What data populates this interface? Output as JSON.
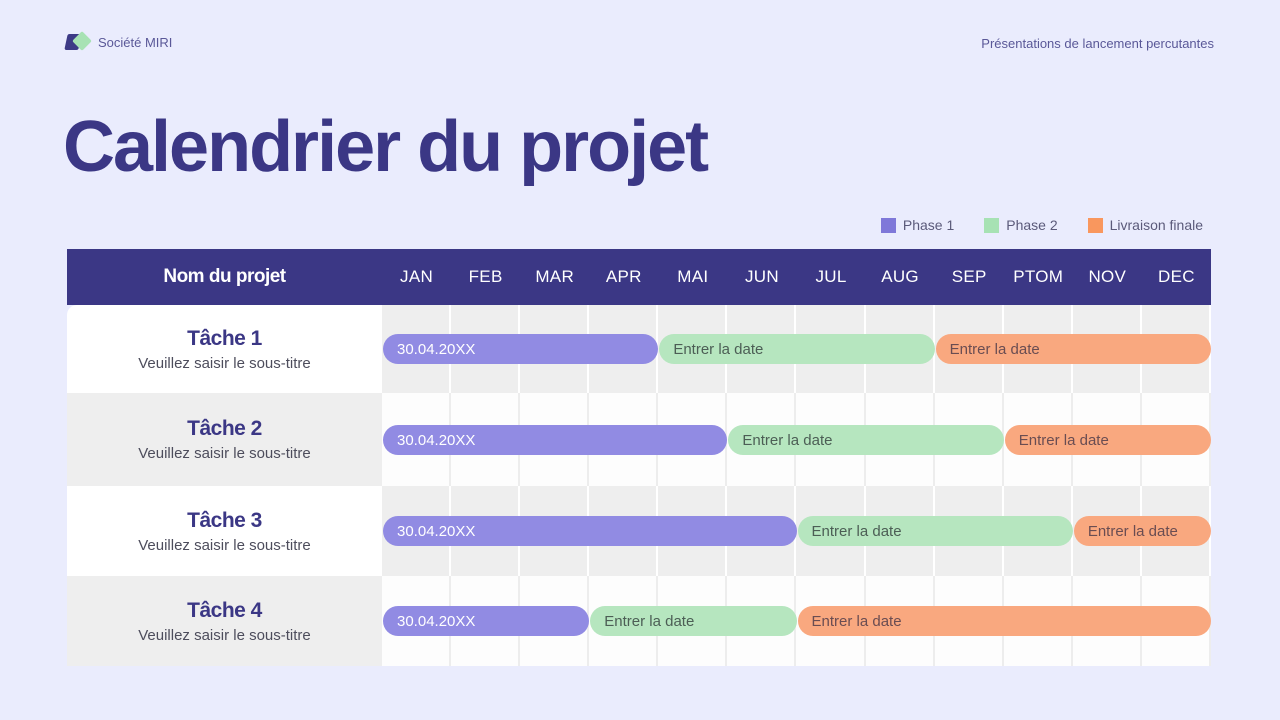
{
  "header": {
    "brand_name": "Société MIRI",
    "tagline": "Présentations de lancement percutantes"
  },
  "page_title": "Calendrier du projet",
  "legend": [
    {
      "label": "Phase 1",
      "color": "#7f78d9"
    },
    {
      "label": "Phase 2",
      "color": "#a7e2b4"
    },
    {
      "label": "Livraison finale",
      "color": "#f9975e"
    }
  ],
  "table": {
    "name_header": "Nom du projet",
    "months": [
      "JAN",
      "FEB",
      "MAR",
      "APR",
      "MAI",
      "JUN",
      "JUL",
      "AUG",
      "SEP",
      "PTOM",
      "NOV",
      "DEC"
    ],
    "rows": [
      {
        "title": "Tâche 1",
        "subtitle": "Veuillez saisir le sous-titre",
        "bars": [
          {
            "phase": "Phase 1",
            "label": "30.04.20XX",
            "start": 0,
            "end": 4
          },
          {
            "phase": "Phase 2",
            "label": "Entrer la date",
            "start": 4,
            "end": 8
          },
          {
            "phase": "Livraison finale",
            "label": "Entrer la date",
            "start": 8,
            "end": 12
          }
        ]
      },
      {
        "title": "Tâche 2",
        "subtitle": "Veuillez saisir le sous-titre",
        "bars": [
          {
            "phase": "Phase 1",
            "label": "30.04.20XX",
            "start": 0,
            "end": 5
          },
          {
            "phase": "Phase 2",
            "label": "Entrer la date",
            "start": 5,
            "end": 9
          },
          {
            "phase": "Livraison finale",
            "label": "Entrer la date",
            "start": 9,
            "end": 12
          }
        ]
      },
      {
        "title": "Tâche 3",
        "subtitle": "Veuillez saisir le sous-titre",
        "bars": [
          {
            "phase": "Phase 1",
            "label": "30.04.20XX",
            "start": 0,
            "end": 6
          },
          {
            "phase": "Phase 2",
            "label": "Entrer la date",
            "start": 6,
            "end": 10
          },
          {
            "phase": "Livraison finale",
            "label": "Entrer la date",
            "start": 10,
            "end": 12
          }
        ]
      },
      {
        "title": "Tâche 4",
        "subtitle": "Veuillez saisir le sous-titre",
        "bars": [
          {
            "phase": "Phase 1",
            "label": "30.04.20XX",
            "start": 0,
            "end": 3
          },
          {
            "phase": "Phase 2",
            "label": "Entrer la date",
            "start": 3,
            "end": 6
          },
          {
            "phase": "Livraison finale",
            "label": "Entrer la date",
            "start": 6,
            "end": 12
          }
        ]
      }
    ]
  }
}
